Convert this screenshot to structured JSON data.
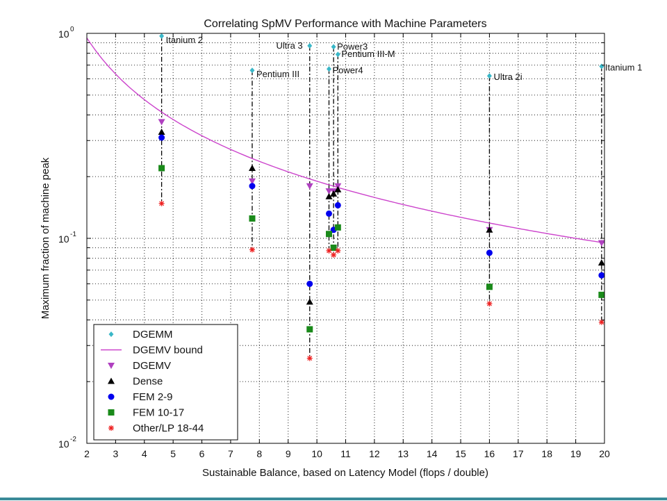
{
  "chart_data": {
    "type": "scatter",
    "title": "Correlating SpMV Performance with Machine Parameters",
    "xlabel": "Sustainable Balance, based on Latency Model (flops / double)",
    "ylabel": "Maximum fraction of machine peak",
    "xlim": [
      2,
      20
    ],
    "ylim": [
      0.01,
      1
    ],
    "yscale": "log",
    "xticks": [
      2,
      3,
      4,
      5,
      6,
      7,
      8,
      9,
      10,
      11,
      12,
      13,
      14,
      15,
      16,
      17,
      18,
      19,
      20
    ],
    "yticks": [
      {
        "value": 1,
        "base": "10",
        "exp": "0"
      },
      {
        "value": 0.1,
        "base": "10",
        "exp": "-1"
      },
      {
        "value": 0.01,
        "base": "10",
        "exp": "-2"
      }
    ],
    "grid": true,
    "legend_position": "bottom-left",
    "machines": [
      {
        "name": "Itanium 2",
        "x": 4.6
      },
      {
        "name": "Pentium III",
        "x": 7.75
      },
      {
        "name": "Ultra 3",
        "x": 9.75
      },
      {
        "name": "Power4",
        "x": 10.42
      },
      {
        "name": "Power3",
        "x": 10.58
      },
      {
        "name": "Pentium III-M",
        "x": 10.73
      },
      {
        "name": "Ultra 2i",
        "x": 16.0
      },
      {
        "name": "Itanium 1",
        "x": 19.9
      }
    ],
    "bound_curve": {
      "name": "DGEMV bound",
      "constant": 1.9,
      "x_start": 2,
      "x_end": 20
    },
    "series": [
      {
        "name": "DGEMM",
        "marker": "diamond",
        "color": "#3ab7c8",
        "x": [
          4.6,
          7.75,
          9.75,
          10.42,
          10.58,
          10.73,
          16.0,
          19.9
        ],
        "y": [
          0.97,
          0.66,
          0.87,
          0.67,
          0.86,
          0.79,
          0.62,
          0.69
        ]
      },
      {
        "name": "DGEMV",
        "marker": "triangle-down",
        "color": "#b040c0",
        "x": [
          4.6,
          7.75,
          9.75,
          10.42,
          10.58,
          10.73,
          16.0,
          19.9
        ],
        "y": [
          0.37,
          0.19,
          0.18,
          0.17,
          0.17,
          0.18,
          0.11,
          0.095
        ]
      },
      {
        "name": "Dense",
        "marker": "triangle-up",
        "color": "#000000",
        "x": [
          4.6,
          7.75,
          9.75,
          10.42,
          10.58,
          10.73,
          16.0,
          19.9
        ],
        "y": [
          0.33,
          0.22,
          0.049,
          0.16,
          0.165,
          0.173,
          0.11,
          0.076
        ]
      },
      {
        "name": "FEM 2-9",
        "marker": "circle",
        "color": "#0000ee",
        "x": [
          4.6,
          7.75,
          9.75,
          10.42,
          10.58,
          10.73,
          16.0,
          19.9
        ],
        "y": [
          0.31,
          0.18,
          0.06,
          0.132,
          0.11,
          0.145,
          0.085,
          0.066
        ]
      },
      {
        "name": "FEM 10-17",
        "marker": "square",
        "color": "#1a8a1a",
        "x": [
          4.6,
          7.75,
          9.75,
          10.42,
          10.58,
          10.73,
          16.0,
          19.9
        ],
        "y": [
          0.22,
          0.125,
          0.036,
          0.105,
          0.09,
          0.113,
          0.058,
          0.053
        ]
      },
      {
        "name": "Other/LP 18-44",
        "marker": "star",
        "color": "#ee2020",
        "x": [
          4.6,
          7.75,
          9.75,
          10.42,
          10.58,
          10.73,
          16.0,
          19.9
        ],
        "y": [
          0.148,
          0.088,
          0.026,
          0.087,
          0.083,
          0.087,
          0.048,
          0.039
        ]
      }
    ],
    "legend": [
      "DGEMM",
      "DGEMV bound",
      "DGEMV",
      "Dense",
      "FEM 2-9",
      "FEM 10-17",
      "Other/LP 18-44"
    ]
  },
  "colors": {
    "bound": "#cc44cc",
    "bottom_band": "#3a8a98"
  }
}
